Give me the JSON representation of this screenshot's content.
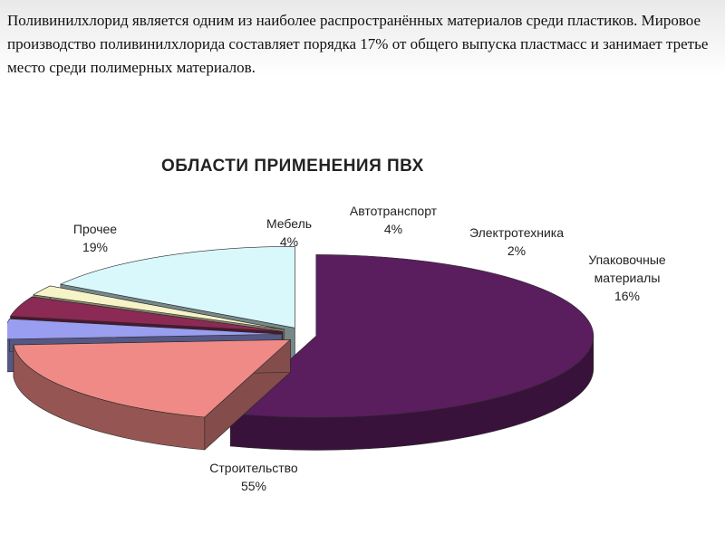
{
  "intro_text": "Поливинилхлорид является одним из наиболее распространённых материалов среди пластиков. Мировое производство поливинилхлорида составляет порядка 17% от общего выпуска пластмасс и занимает третье место среди полимерных материалов.",
  "chart_data": {
    "type": "pie",
    "title": "ОБЛАСТИ ПРИМЕНЕНИЯ ПВХ",
    "three_d": true,
    "exploded": true,
    "slices": [
      {
        "label": "Строительство",
        "value": 55,
        "value_label": "55%",
        "color": "#5a1d5e"
      },
      {
        "label": "Прочее",
        "value": 19,
        "value_label": "19%",
        "color": "#f08a86"
      },
      {
        "label": "Мебель",
        "value": 4,
        "value_label": "4%",
        "color": "#9a9ef0"
      },
      {
        "label": "Автотранспорт",
        "value": 4,
        "value_label": "4%",
        "color": "#8b2a55"
      },
      {
        "label": "Электротехника",
        "value": 2,
        "value_label": "2%",
        "color": "#f7f3c8"
      },
      {
        "label": "Упаковочные материалы",
        "value": 16,
        "value_label": "16%",
        "color": "#d9f8fb"
      }
    ]
  }
}
